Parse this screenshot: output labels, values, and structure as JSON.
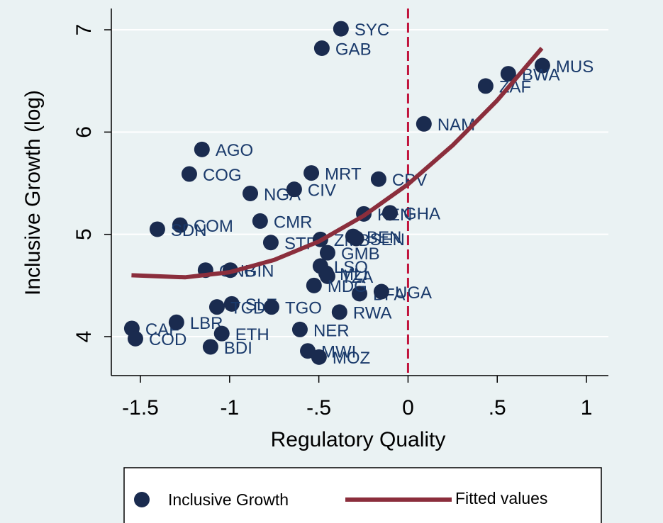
{
  "chart_data": {
    "type": "scatter",
    "x_label": "Regulatory Quality",
    "y_label": "Inclusive Growth (log)",
    "xlim": [
      -1.663,
      1.123
    ],
    "ylim": [
      3.619,
      7.208
    ],
    "xticks": [
      -1.5,
      -1,
      {
        "value": -0.5,
        "label": "-.5"
      },
      0,
      {
        "value": 0.5,
        "label": ".5"
      },
      1
    ],
    "yticks": [
      4,
      5,
      6,
      7
    ],
    "grid": true,
    "vline": 0,
    "vline_color": "#c0143c",
    "series": [
      {
        "name": "Inclusive Growth",
        "type": "scatter",
        "color": "#1a2b4f",
        "labels": [
          "SYC",
          "GAB",
          "MUS",
          "BWA",
          "ZAF",
          "NAM",
          "AGO",
          "COG",
          "MRT",
          "CPV",
          "NGA",
          "CIV",
          "KEN",
          "GHA",
          "CMR",
          "COM",
          "SDN",
          "STP",
          "ZMB",
          "BEN",
          "SEN",
          "GMB",
          "GNB",
          "GIN",
          "LSO",
          "MLI",
          "TZA",
          "BFA",
          "UGA",
          "MDG",
          "SLE",
          "TCD",
          "TGO",
          "RWA",
          "CAF",
          "LBR",
          "ETH",
          "NER",
          "COD",
          "BDI",
          "MWI",
          "MOZ"
        ],
        "x": [
          -0.376,
          -0.483,
          0.753,
          0.562,
          0.435,
          0.089,
          -1.155,
          -1.226,
          -0.542,
          -0.165,
          -0.884,
          -0.638,
          -0.248,
          -0.101,
          -0.829,
          -1.278,
          -1.405,
          -0.769,
          -0.491,
          -0.308,
          -0.29,
          -0.451,
          -1.135,
          -0.996,
          -0.491,
          -0.459,
          -0.451,
          -0.272,
          -0.149,
          -0.527,
          -0.988,
          -1.071,
          -0.765,
          -0.384,
          -1.548,
          -1.298,
          -1.044,
          -0.606,
          -1.528,
          -1.107,
          -0.562,
          -0.499
        ],
        "values": [
          7.01,
          6.82,
          6.65,
          6.57,
          6.45,
          6.08,
          5.83,
          5.59,
          5.6,
          5.54,
          5.4,
          5.44,
          5.2,
          5.21,
          5.13,
          5.09,
          5.05,
          4.92,
          4.95,
          4.98,
          4.96,
          4.82,
          4.65,
          4.65,
          4.69,
          4.62,
          4.59,
          4.42,
          4.44,
          4.5,
          4.32,
          4.29,
          4.29,
          4.24,
          4.08,
          4.14,
          4.03,
          4.07,
          3.98,
          3.9,
          3.86,
          3.8
        ]
      },
      {
        "name": "Fitted values",
        "type": "line",
        "color": "#8b2e3c",
        "x": [
          -1.55,
          -1.25,
          -1,
          -0.75,
          -0.5,
          -0.25,
          0,
          0.25,
          0.5,
          0.75
        ],
        "values": [
          4.6,
          4.58,
          4.63,
          4.75,
          4.93,
          5.18,
          5.49,
          5.87,
          6.31,
          6.82
        ]
      }
    ]
  }
}
